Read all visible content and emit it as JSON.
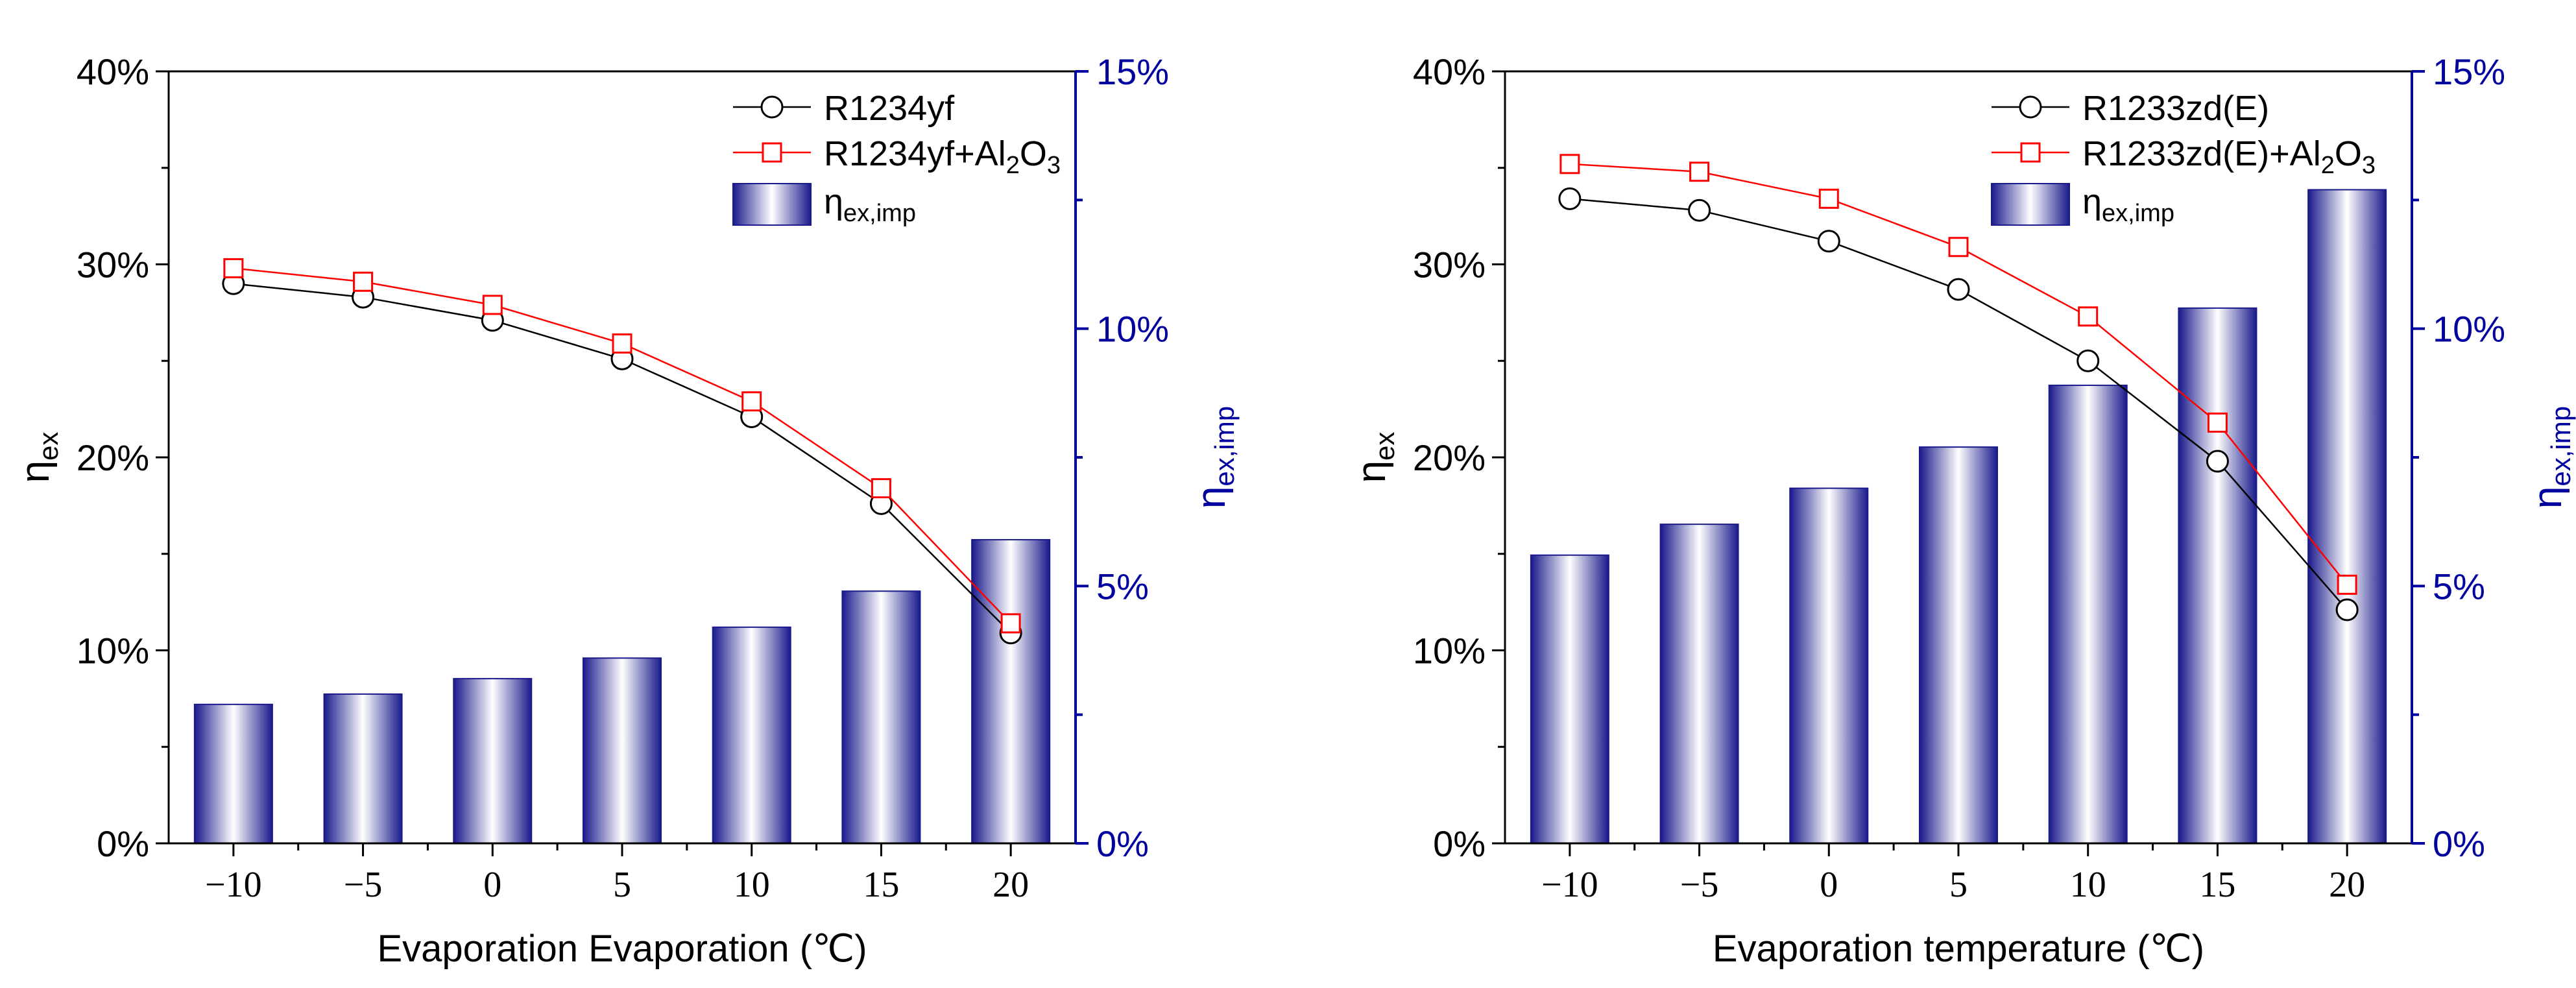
{
  "colors": {
    "left_axis": "#000000",
    "right_axis": "#00009e",
    "series_base": "#000000",
    "series_np": "#ff0000",
    "bar_dark": "#1a1a8c",
    "bar_light": "#ffffff"
  },
  "chart_data": [
    {
      "type": "bar+line",
      "xlabel": "Evaporation Evaporation (℃)",
      "ylabel_main": "η",
      "ylabel_sub": "ex",
      "y2label_main": "η",
      "y2label_sub": "ex,imp",
      "categories": [
        -10,
        -5,
        0,
        5,
        10,
        15,
        20
      ],
      "x_tick_labels": [
        "−10",
        "−5",
        "0",
        "5",
        "10",
        "15",
        "20"
      ],
      "ylim": [
        0,
        40
      ],
      "y_ticks": [
        0,
        10,
        20,
        30,
        40
      ],
      "y_tick_labels": [
        "0%",
        "10%",
        "20%",
        "30%",
        "40%"
      ],
      "y2lim": [
        0,
        15
      ],
      "y2_ticks": [
        0,
        5,
        10,
        15
      ],
      "y2_tick_labels": [
        "0%",
        "5%",
        "10%",
        "15%"
      ],
      "legend": {
        "base": "R1234yf",
        "np_prefix": "R1234yf+Al",
        "np_sub1": "2",
        "np_mid": "O",
        "np_sub2": "3",
        "bar_main": "η",
        "bar_sub": "ex,imp"
      },
      "series": [
        {
          "name": "R1234yf",
          "axis": "left",
          "marker": "circle",
          "values": [
            29.0,
            28.3,
            27.1,
            25.1,
            22.1,
            17.6,
            10.9
          ]
        },
        {
          "name": "R1234yf+Al2O3",
          "axis": "left",
          "marker": "square",
          "values": [
            29.8,
            29.1,
            27.9,
            25.9,
            22.9,
            18.4,
            11.4
          ]
        },
        {
          "name": "ηex,imp",
          "axis": "right",
          "type": "bar",
          "values": [
            2.7,
            2.9,
            3.2,
            3.6,
            4.2,
            4.9,
            5.9
          ]
        }
      ]
    },
    {
      "type": "bar+line",
      "xlabel": "Evaporation temperature (℃)",
      "ylabel_main": "η",
      "ylabel_sub": "ex",
      "y2label_main": "η",
      "y2label_sub": "ex,imp",
      "categories": [
        -10,
        -5,
        0,
        5,
        10,
        15,
        20
      ],
      "x_tick_labels": [
        "−10",
        "−5",
        "0",
        "5",
        "10",
        "15",
        "20"
      ],
      "ylim": [
        0,
        40
      ],
      "y_ticks": [
        0,
        10,
        20,
        30,
        40
      ],
      "y_tick_labels": [
        "0%",
        "10%",
        "20%",
        "30%",
        "40%"
      ],
      "y2lim": [
        0,
        15
      ],
      "y2_ticks": [
        0,
        5,
        10,
        15
      ],
      "y2_tick_labels": [
        "0%",
        "5%",
        "10%",
        "15%"
      ],
      "legend": {
        "base": "R1233zd(E)",
        "np_prefix": "R1233zd(E)+Al",
        "np_sub1": "2",
        "np_mid": "O",
        "np_sub2": "3",
        "bar_main": "η",
        "bar_sub": "ex,imp"
      },
      "series": [
        {
          "name": "R1233zd(E)",
          "axis": "left",
          "marker": "circle",
          "values": [
            33.4,
            32.8,
            31.2,
            28.7,
            25.0,
            19.8,
            12.1
          ]
        },
        {
          "name": "R1233zd(E)+Al2O3",
          "axis": "left",
          "marker": "square",
          "values": [
            35.2,
            34.8,
            33.4,
            30.9,
            27.3,
            21.8,
            13.4
          ]
        },
        {
          "name": "ηex,imp",
          "axis": "right",
          "type": "bar",
          "values": [
            5.6,
            6.2,
            6.9,
            7.7,
            8.9,
            10.4,
            12.7
          ]
        }
      ]
    }
  ]
}
